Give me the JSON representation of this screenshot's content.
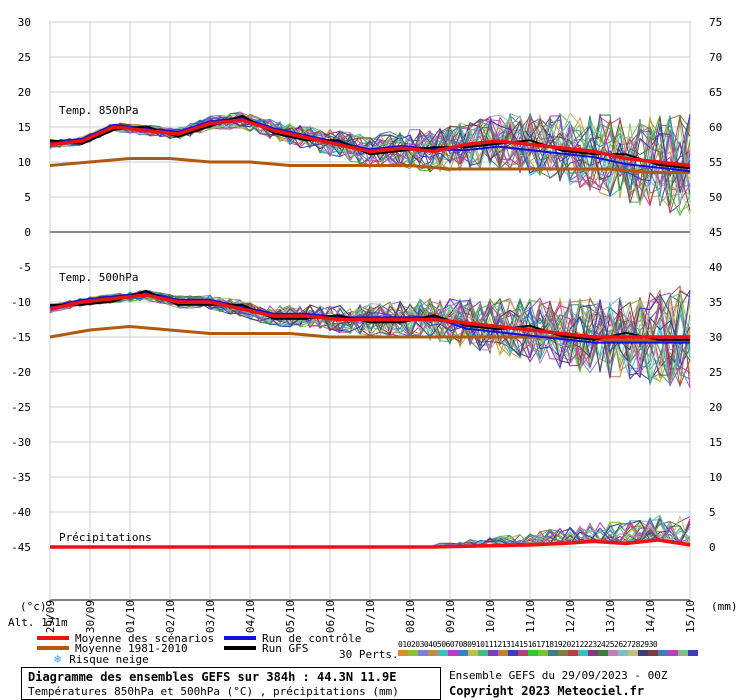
{
  "chart_data": {
    "type": "line",
    "panels": [
      {
        "name": "Temp. 850hPa",
        "mean_scenarios_trend": [
          12.5,
          13,
          15,
          14.5,
          14,
          15.5,
          16,
          14.5,
          13.5,
          12.5,
          11.5,
          12,
          11.5,
          12.5,
          13,
          12.5,
          12,
          11.5,
          10.5,
          10,
          9.5
        ]
      },
      {
        "name": "Temp. 500hPa",
        "mean_scenarios_trend": [
          -11,
          -10,
          -9.5,
          -9,
          -10,
          -10,
          -11,
          -12,
          -12,
          -12.5,
          -12.5,
          -12.5,
          -12.5,
          -13,
          -13.5,
          -14,
          -14.5,
          -15,
          -15,
          -15,
          -15
        ]
      },
      {
        "name": "Précipitations",
        "mean_scenarios_trend": [
          0,
          0,
          0,
          0,
          0,
          0,
          0,
          0,
          0,
          0,
          0,
          0,
          0,
          0.1,
          0.2,
          0.3,
          0.5,
          0.8,
          0.5,
          1,
          0.3
        ]
      }
    ],
    "x_ticks": [
      "29/09",
      "30/09",
      "01/10",
      "02/10",
      "03/10",
      "04/10",
      "05/10",
      "06/10",
      "07/10",
      "08/10",
      "09/10",
      "10/10",
      "11/10",
      "12/10",
      "13/10",
      "14/10",
      "15/10"
    ],
    "y_left_ticks": [
      30,
      25,
      20,
      15,
      10,
      5,
      0,
      -5,
      -10,
      -15,
      -20,
      -25,
      -30,
      -35,
      -40,
      -45
    ],
    "y_right_ticks": [
      75,
      70,
      65,
      60,
      55,
      50,
      45,
      40,
      35,
      30,
      25,
      20,
      15,
      10,
      5,
      0
    ],
    "y_left_unit": "(°c)",
    "y_right_unit": "(mm)",
    "climatology_850": [
      9.5,
      10,
      10.5,
      10.5,
      10,
      10,
      9.5,
      9.5,
      9.5,
      9.5,
      9,
      9,
      9,
      9,
      9,
      8.5,
      8.5
    ],
    "climatology_500": [
      -15,
      -14,
      -13.5,
      -14,
      -14.5,
      -14.5,
      -14.5,
      -15,
      -15,
      -15,
      -15,
      -15,
      -15,
      -15,
      -15.5,
      -15.5,
      -15.5
    ],
    "grid": true
  },
  "labels": {
    "alt": "Alt. 171m",
    "temp850": "Temp. 850hPa",
    "temp500": "Temp. 500hPa",
    "precip": "Précipitations",
    "left_unit": "(°c)",
    "right_unit": "(mm)"
  },
  "legend": {
    "mean_scenarios": "Moyenne des scénarios",
    "mean_climate": "Moyenne 1981-2010",
    "snow_risk": "Risque neige",
    "control_run": "Run de contrôle",
    "gfs_run": "Run GFS",
    "perts_label": "30 Perts.",
    "pert_numbers": [
      "01",
      "02",
      "03",
      "04",
      "05",
      "06",
      "07",
      "08",
      "09",
      "10",
      "11",
      "12",
      "13",
      "14",
      "15",
      "16",
      "17",
      "18",
      "19",
      "20",
      "21",
      "22",
      "23",
      "24",
      "25",
      "26",
      "27",
      "28",
      "29",
      "30"
    ],
    "pert_colors": [
      "#e0873c",
      "#8fbf3c",
      "#7f7fd9",
      "#bf8f3c",
      "#3cbfbf",
      "#bf3cbf",
      "#3c7fbf",
      "#bfbf3c",
      "#3cbf7f",
      "#7f3cbf",
      "#bf7f3c",
      "#3c3cbf",
      "#bf3c7f",
      "#3cbf3c",
      "#7fbf3c",
      "#3c7f7f",
      "#7f7f3c",
      "#bf3c3c",
      "#3cbfbf",
      "#7f3c7f",
      "#3c7f3c",
      "#bf7fbf",
      "#7fbfbf",
      "#bfbf7f",
      "#3c3c7f",
      "#7f3c3c",
      "#3c7fbf",
      "#bf3cbf",
      "#7fbf7f",
      "#3c3cbf"
    ],
    "colors": {
      "mean_scenarios": "#ee1111",
      "mean_climate": "#b05a10",
      "control_run": "#1111dd",
      "gfs_run": "#000000",
      "snow": "#3aa0ff"
    }
  },
  "footer": {
    "title": "Diagramme des ensembles GEFS sur 384h : 44.3N 11.9E",
    "subtitle": "Températures 850hPa et 500hPa (°C) , précipitations (mm)",
    "run": "Ensemble GEFS du 29/09/2023 - 00Z",
    "copyright": "Copyright 2023 Meteociel.fr"
  }
}
